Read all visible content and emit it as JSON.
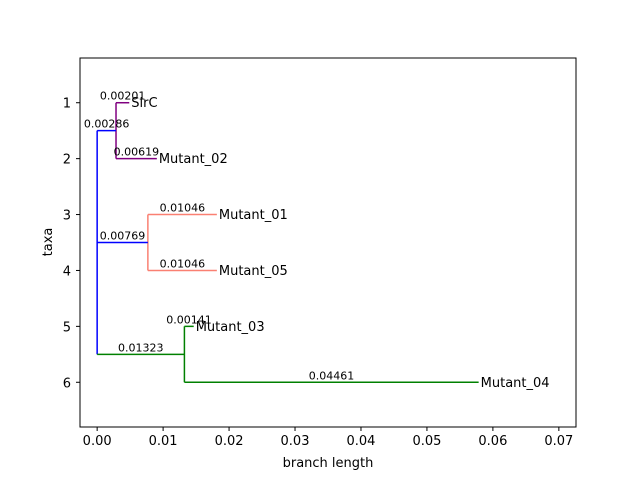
{
  "chart_data": {
    "type": "phylogenetic-tree",
    "title": "",
    "xlabel": "branch length",
    "ylabel": "taxa",
    "xlim": [
      -0.0026,
      0.0726
    ],
    "ylim": [
      6.8,
      0.2
    ],
    "x_ticks": [
      0.0,
      0.01,
      0.02,
      0.03,
      0.04,
      0.05,
      0.06,
      0.07
    ],
    "x_tick_labels": [
      "0.00",
      "0.01",
      "0.02",
      "0.03",
      "0.04",
      "0.05",
      "0.06",
      "0.07"
    ],
    "y_ticks": [
      1,
      2,
      3,
      4,
      5,
      6
    ],
    "y_tick_labels": [
      "1",
      "2",
      "3",
      "4",
      "5",
      "6"
    ],
    "nodes": [
      {
        "id": "root",
        "x": 0.0,
        "y": 5.5
      },
      {
        "id": "n_sirc",
        "x": 0.00286,
        "y": 1.5
      },
      {
        "id": "n_mut01",
        "x": 0.00769,
        "y": 3.5
      },
      {
        "id": "n_mut03",
        "x": 0.01323,
        "y": 5.5
      }
    ],
    "leaves": [
      {
        "name": "SirC",
        "x": 0.00487,
        "y": 1
      },
      {
        "name": "Mutant_02",
        "x": 0.00905,
        "y": 2
      },
      {
        "name": "Mutant_01",
        "x": 0.01815,
        "y": 3
      },
      {
        "name": "Mutant_05",
        "x": 0.01815,
        "y": 4
      },
      {
        "name": "Mutant_03",
        "x": 0.01464,
        "y": 5
      },
      {
        "name": "Mutant_04",
        "x": 0.05784,
        "y": 6
      }
    ],
    "branches": [
      {
        "x0": 0.0,
        "x1": 0.00286,
        "y": 1.5,
        "color": "#0000ff",
        "label": "0.00286"
      },
      {
        "x0": 0.0,
        "x1": 0.00769,
        "y": 3.5,
        "color": "#0000ff",
        "label": "0.00769"
      },
      {
        "x0": 0.0,
        "x1": 0.01323,
        "y": 5.5,
        "color": "#008000",
        "label": "0.01323"
      },
      {
        "x0": 0.00286,
        "x1": 0.00487,
        "y": 1,
        "color": "#800080",
        "label": "0.00201"
      },
      {
        "x0": 0.00286,
        "x1": 0.00905,
        "y": 2,
        "color": "#800080",
        "label": "0.00619"
      },
      {
        "x0": 0.00769,
        "x1": 0.01815,
        "y": 3,
        "color": "#fa8072",
        "label": "0.01046"
      },
      {
        "x0": 0.00769,
        "x1": 0.01815,
        "y": 4,
        "color": "#fa8072",
        "label": "0.01046"
      },
      {
        "x0": 0.01323,
        "x1": 0.01464,
        "y": 5,
        "color": "#008000",
        "label": "0.00141"
      },
      {
        "x0": 0.01323,
        "x1": 0.05784,
        "y": 6,
        "color": "#008000",
        "label": "0.04461"
      }
    ],
    "verticals": [
      {
        "x": 0.0,
        "y0": 1.5,
        "y1": 5.5,
        "color": "#0000ff"
      },
      {
        "x": 0.00286,
        "y0": 1,
        "y1": 2,
        "color": "#800080"
      },
      {
        "x": 0.00769,
        "y0": 3,
        "y1": 4,
        "color": "#fa8072"
      },
      {
        "x": 0.01323,
        "y0": 5,
        "y1": 6,
        "color": "#008000"
      }
    ],
    "series_colors": {
      "root": "#0000ff",
      "sirc_clade": "#800080",
      "mutant01_clade": "#fa8072",
      "mutant03_clade": "#008000"
    }
  }
}
